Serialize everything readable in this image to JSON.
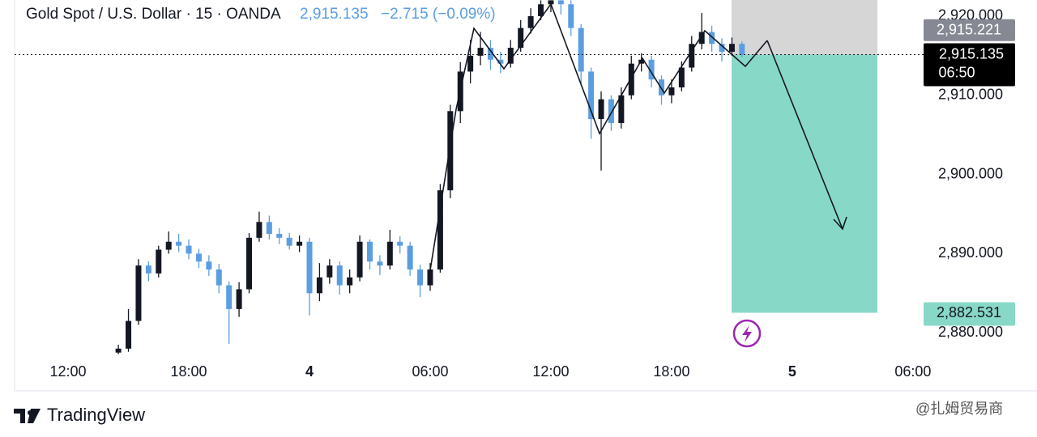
{
  "header": {
    "symbol": "Gold Spot / U.S. Dollar · 15 · OANDA",
    "last": "2,915.135",
    "change": "−2.715 (−0.09%)"
  },
  "chart_data": {
    "type": "candlestick",
    "x": [
      2.5,
      3,
      3.5,
      4,
      4.5,
      5,
      5.5,
      6,
      6.5,
      7,
      7.5,
      8,
      8.5,
      9,
      9.5,
      10,
      10.5,
      11,
      11.5,
      12,
      12.5,
      13,
      13.5,
      14,
      14.5,
      15,
      15.5,
      16,
      16.5,
      17,
      17.5,
      18,
      18.5,
      19,
      19.5,
      20,
      20.5,
      21,
      21.5,
      22,
      22.5,
      23,
      23.5,
      24,
      24.5,
      25,
      25.5,
      26,
      26.5,
      27,
      27.5,
      28,
      28.5,
      29,
      29.5,
      30,
      30.5,
      31,
      31.5,
      32,
      32.5,
      33,
      33.5
    ],
    "open": [
      2877.5,
      2878,
      2881.5,
      2888.5,
      2887.5,
      2890.5,
      2891.5,
      2891,
      2890,
      2889,
      2888,
      2886,
      2883,
      2885.5,
      2892,
      2894,
      2892.5,
      2892,
      2891,
      2891.5,
      2885,
      2887,
      2888.5,
      2886,
      2887,
      2891.5,
      2889,
      2888.5,
      2891.5,
      2891,
      2888,
      2886,
      2888,
      2898,
      2908,
      2913,
      2915,
      2916,
      2914.5,
      2914,
      2916,
      2918.5,
      2920,
      2921.5,
      2922,
      2921.5,
      2918.5,
      2913,
      2907,
      2909.5,
      2906.5,
      2910,
      2914,
      2914.5,
      2912,
      2910,
      2911,
      2913.5,
      2916.5,
      2918,
      2916.5,
      2915.5,
      2916.5
    ],
    "high": [
      2878.5,
      2883,
      2889.3,
      2889,
      2891,
      2892.8,
      2892.5,
      2891.8,
      2890.6,
      2889.8,
      2888.7,
      2886.5,
      2886.4,
      2892.6,
      2895.3,
      2894.8,
      2893.2,
      2892.6,
      2892.3,
      2892,
      2888.8,
      2889.3,
      2889,
      2888,
      2892.3,
      2891.8,
      2889.8,
      2893,
      2892.2,
      2891.5,
      2888.6,
      2888.8,
      2898.8,
      2908.8,
      2914.2,
      2917,
      2918,
      2917,
      2915.5,
      2917,
      2919.5,
      2921,
      2922,
      2922,
      2922,
      2922,
      2919,
      2913.5,
      2910.5,
      2910,
      2911,
      2915,
      2915.3,
      2915,
      2912.5,
      2912,
      2914.3,
      2917.5,
      2920.4,
      2918.8,
      2917.2,
      2917.3,
      2916.8
    ],
    "low": [
      2877.3,
      2877.6,
      2881,
      2886.5,
      2887,
      2890,
      2890.2,
      2889.3,
      2888.2,
      2887.2,
      2885,
      2878.6,
      2882,
      2885,
      2891.5,
      2891.8,
      2891.2,
      2890.5,
      2890.2,
      2882.2,
      2884,
      2886.2,
      2884.8,
      2885,
      2886.5,
      2888,
      2887.3,
      2888,
      2890,
      2887.2,
      2884.5,
      2885.3,
      2887.6,
      2897,
      2906.5,
      2911.5,
      2913.8,
      2913.2,
      2912.8,
      2913.5,
      2915.5,
      2917.8,
      2919.5,
      2920.5,
      2920.2,
      2917.5,
      2911.5,
      2904.5,
      2900.5,
      2905.5,
      2905.8,
      2909.5,
      2913,
      2911,
      2908.8,
      2909,
      2910.5,
      2913,
      2915.8,
      2915.5,
      2914.3,
      2915,
      2914.8
    ],
    "close": [
      2878,
      2881.5,
      2888.5,
      2887.5,
      2890.5,
      2891.5,
      2891,
      2890,
      2889,
      2888,
      2886,
      2883,
      2885.5,
      2892,
      2894,
      2892.5,
      2892,
      2891,
      2891.5,
      2885,
      2887,
      2888.5,
      2886,
      2887,
      2891.5,
      2889,
      2888.5,
      2891.5,
      2891,
      2888,
      2886,
      2888,
      2898,
      2908,
      2913,
      2915,
      2916,
      2914.5,
      2914,
      2916,
      2918.5,
      2920,
      2921.5,
      2922,
      2921.5,
      2918.5,
      2913,
      2907,
      2909.5,
      2906.5,
      2910,
      2914,
      2914.5,
      2912,
      2910,
      2911,
      2913.5,
      2916.5,
      2918,
      2916.5,
      2915.5,
      2916.5,
      2915.135
    ],
    "up_color": "#131722",
    "down_color": "#5b9ee0",
    "xlim": [
      -2.66,
      41.32
    ],
    "xticks": [
      {
        "value": 0,
        "label": "12:00"
      },
      {
        "value": 6,
        "label": "18:00"
      },
      {
        "value": 12,
        "label": "4"
      },
      {
        "value": 18,
        "label": "06:00"
      },
      {
        "value": 24,
        "label": "12:00"
      },
      {
        "value": 30,
        "label": "18:00"
      },
      {
        "value": 36,
        "label": "5"
      },
      {
        "value": 42,
        "label": "06:00"
      }
    ],
    "ylim": [
      2877.06,
      2922.04
    ],
    "yticks": [
      {
        "value": 2920,
        "label": "2,920.000"
      },
      {
        "value": 2910,
        "label": "2,910.000"
      },
      {
        "value": 2900,
        "label": "2,900.000"
      },
      {
        "value": 2890,
        "label": "2,890.000"
      },
      {
        "value": 2880,
        "label": "2,880.000"
      }
    ],
    "stop_price": {
      "value": 2915.221,
      "label": "2,915.221"
    },
    "last_price": {
      "value": 2915.135,
      "label": "2,915.135",
      "countdown": "06:50"
    },
    "target_price": {
      "value": 2882.531,
      "label": "2,882.531"
    }
  },
  "footer": {
    "brand": "TradingView",
    "watermark": "@扎姆贸易商"
  }
}
